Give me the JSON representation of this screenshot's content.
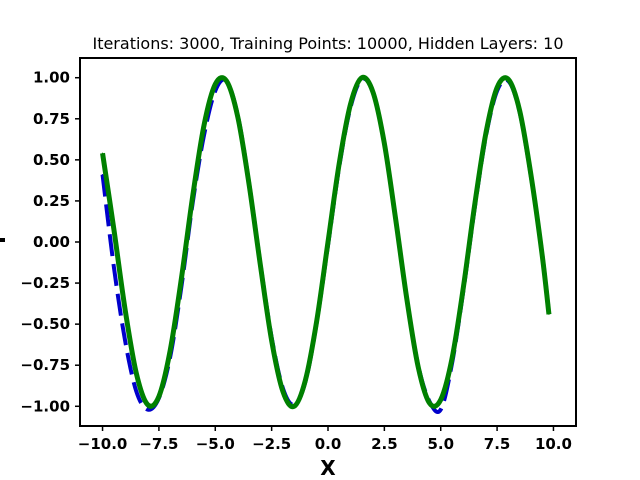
{
  "chart_data": {
    "type": "line",
    "title": "Iterations: 3000, Training Points: 10000, Hidden Layers: 10",
    "xlabel": "X",
    "ylabel": "",
    "xlim": [
      -11.0,
      11.0
    ],
    "ylim": [
      -1.12,
      1.12
    ],
    "x_ticks": [
      -10.0,
      -7.5,
      -5.0,
      -2.5,
      0.0,
      2.5,
      5.0,
      7.5,
      10.0
    ],
    "x_tick_labels": [
      "−10.0",
      "−7.5",
      "−5.0",
      "−2.5",
      "0.0",
      "2.5",
      "5.0",
      "7.5",
      "10.0"
    ],
    "y_ticks": [
      1.0,
      0.75,
      0.5,
      0.25,
      0.0,
      -0.25,
      -0.5,
      -0.75,
      -1.0
    ],
    "y_tick_labels": [
      "1.00",
      "0.75",
      "0.50",
      "0.25",
      "0.00",
      "−0.25",
      "−0.50",
      "−0.75",
      "−1.00"
    ],
    "grid": false,
    "series": [
      {
        "style": "dashed",
        "color": "#0000cc",
        "x": [
          -10.0,
          -9.5,
          -9.0,
          -8.5,
          -8.0,
          -7.5,
          -7.0,
          -6.5,
          -6.0,
          -5.5,
          -5.0,
          -4.5,
          -4.0,
          -3.5,
          -3.0,
          -2.5,
          -2.0,
          -1.5,
          -1.0,
          -0.5,
          0.0,
          0.5,
          1.0,
          1.5,
          2.0,
          2.5,
          3.0,
          3.5,
          4.0,
          4.5,
          5.0,
          5.5,
          6.0,
          6.5,
          7.0,
          7.5,
          8.0,
          8.5,
          9.0,
          9.5,
          9.8
        ],
        "y": [
          0.41,
          -0.15,
          -0.6,
          -0.91,
          -1.02,
          -0.95,
          -0.7,
          -0.27,
          0.24,
          0.65,
          0.92,
          0.98,
          0.77,
          0.36,
          -0.13,
          -0.58,
          -0.89,
          -0.99,
          -0.85,
          -0.49,
          -0.02,
          0.46,
          0.82,
          0.99,
          0.91,
          0.6,
          0.14,
          -0.35,
          -0.75,
          -0.97,
          -1.02,
          -0.74,
          -0.3,
          0.2,
          0.64,
          0.92,
          0.98,
          0.79,
          0.4,
          -0.07,
          -0.43
        ]
      },
      {
        "style": "solid",
        "color": "#008000",
        "x": [
          -10.0,
          -9.5,
          -9.0,
          -8.5,
          -8.0,
          -7.5,
          -7.0,
          -6.5,
          -6.0,
          -5.5,
          -5.0,
          -4.5,
          -4.0,
          -3.5,
          -3.0,
          -2.5,
          -2.0,
          -1.5,
          -1.0,
          -0.5,
          0.0,
          0.5,
          1.0,
          1.5,
          2.0,
          2.5,
          3.0,
          3.5,
          4.0,
          4.5,
          5.0,
          5.5,
          6.0,
          6.5,
          7.0,
          7.5,
          8.0,
          8.5,
          9.0,
          9.5,
          9.8
        ],
        "y": [
          0.54,
          0.08,
          -0.41,
          -0.8,
          -0.99,
          -0.94,
          -0.66,
          -0.22,
          0.28,
          0.71,
          0.96,
          0.98,
          0.76,
          0.35,
          -0.14,
          -0.6,
          -0.91,
          -1.0,
          -0.84,
          -0.48,
          0.0,
          0.48,
          0.84,
          1.0,
          0.91,
          0.6,
          0.14,
          -0.35,
          -0.76,
          -0.98,
          -0.96,
          -0.71,
          -0.28,
          0.22,
          0.66,
          0.94,
          0.99,
          0.8,
          0.41,
          -0.08,
          -0.44
        ]
      }
    ]
  }
}
